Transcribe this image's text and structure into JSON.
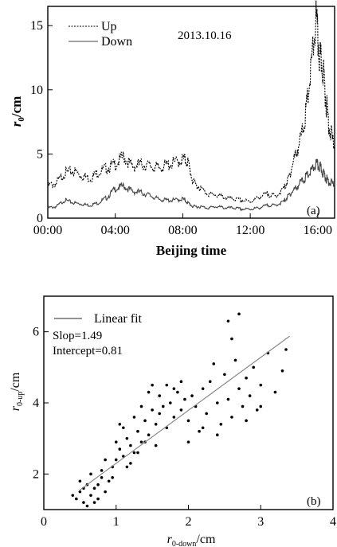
{
  "chart_data": [
    {
      "type": "line",
      "panel_label": "(a)",
      "annotation": "2013.10.16",
      "xlabel": "Beijing time",
      "ylabel_base": "r",
      "ylabel_sub": "0",
      "ylabel_unit": "/cm",
      "x_ticks": [
        "00:00",
        "04:00",
        "08:00",
        "12:00",
        "16:00"
      ],
      "x_tick_hours": [
        0,
        4,
        8,
        12,
        16
      ],
      "xlim_hours": [
        0,
        17
      ],
      "ylim": [
        0,
        16.5
      ],
      "y_ticks": [
        0,
        5,
        10,
        15
      ],
      "series": [
        {
          "name": "Up",
          "style": "dashed",
          "x": [
            0,
            0.5,
            1,
            1.5,
            2,
            2.5,
            3,
            3.5,
            4,
            4.5,
            5,
            5.5,
            6,
            6.5,
            7,
            7.5,
            8,
            8.3,
            8.6,
            9,
            9.5,
            10,
            10.5,
            11,
            11.5,
            12,
            12.5,
            13,
            13.5,
            14,
            14.3,
            14.6,
            15,
            15.3,
            15.6,
            15.9,
            16.1,
            16.3,
            16.5,
            16.7,
            17
          ],
          "y": [
            2.5,
            2.7,
            3.5,
            3.7,
            3.3,
            3.1,
            3.6,
            3.9,
            4.2,
            4.8,
            4.0,
            4.2,
            4.1,
            3.9,
            4.1,
            4.3,
            4.6,
            4.4,
            2.8,
            2.4,
            1.9,
            1.8,
            1.6,
            1.5,
            1.4,
            1.3,
            1.6,
            1.9,
            1.7,
            2.3,
            3.2,
            4.6,
            6.2,
            8.2,
            11.5,
            15.5,
            12.5,
            11.8,
            9.0,
            7.0,
            5.5
          ]
        },
        {
          "name": "Down",
          "style": "solid",
          "x": [
            0,
            0.5,
            1,
            1.5,
            2,
            2.5,
            3,
            3.5,
            4,
            4.5,
            5,
            5.5,
            6,
            6.5,
            7,
            7.5,
            8,
            8.3,
            8.6,
            9,
            9.5,
            10,
            10.5,
            11,
            11.5,
            12,
            12.5,
            13,
            13.5,
            14,
            14.3,
            14.6,
            15,
            15.3,
            15.6,
            15.9,
            16.1,
            16.3,
            16.5,
            16.7,
            17
          ],
          "y": [
            0.8,
            0.9,
            1.4,
            1.2,
            1.1,
            1.0,
            1.2,
            1.6,
            2.3,
            2.5,
            2.1,
            2.0,
            1.8,
            1.5,
            1.4,
            1.4,
            1.5,
            1.2,
            0.9,
            0.9,
            0.8,
            0.9,
            0.8,
            0.8,
            0.7,
            0.7,
            0.8,
            1.0,
            1.0,
            1.3,
            1.8,
            2.2,
            2.8,
            3.2,
            3.6,
            4.2,
            4.0,
            3.6,
            3.1,
            2.8,
            2.6
          ]
        }
      ],
      "colors": {
        "line": "#000000",
        "down_line": "#444444"
      }
    },
    {
      "type": "scatter",
      "panel_label": "(b)",
      "xlabel_base": "r",
      "xlabel_sub": "0-down",
      "xlabel_unit": "/cm",
      "ylabel_base": "r",
      "ylabel_sub": "0-up",
      "ylabel_unit": "/cm",
      "xlim": [
        0,
        4
      ],
      "ylim": [
        1,
        7
      ],
      "x_ticks": [
        0,
        1,
        2,
        3,
        4
      ],
      "y_ticks": [
        2,
        4,
        6
      ],
      "fit": {
        "label": "Linear fit",
        "slope_text": "Slop=1.49",
        "intercept_text": "Intercept=0.81",
        "slope": 1.49,
        "intercept": 0.81,
        "x_range": [
          0.5,
          3.4
        ]
      },
      "points": [
        [
          0.45,
          1.3
        ],
        [
          0.5,
          1.5
        ],
        [
          0.55,
          1.2
        ],
        [
          0.6,
          1.7
        ],
        [
          0.65,
          1.4
        ],
        [
          0.7,
          1.6
        ],
        [
          0.75,
          1.3
        ],
        [
          0.8,
          1.9
        ],
        [
          0.5,
          1.8
        ],
        [
          0.6,
          1.1
        ],
        [
          0.4,
          1.4
        ],
        [
          0.7,
          1.2
        ],
        [
          0.85,
          1.5
        ],
        [
          0.9,
          1.8
        ],
        [
          0.55,
          1.6
        ],
        [
          0.65,
          2.0
        ],
        [
          0.75,
          1.7
        ],
        [
          0.95,
          2.2
        ],
        [
          1.0,
          2.4
        ],
        [
          0.8,
          2.1
        ],
        [
          1.05,
          2.7
        ],
        [
          1.1,
          2.5
        ],
        [
          1.15,
          3.0
        ],
        [
          1.2,
          2.8
        ],
        [
          1.25,
          2.6
        ],
        [
          1.3,
          3.2
        ],
        [
          1.0,
          2.9
        ],
        [
          1.1,
          3.3
        ],
        [
          1.2,
          2.3
        ],
        [
          1.35,
          2.9
        ],
        [
          1.4,
          3.5
        ],
        [
          1.45,
          3.1
        ],
        [
          1.5,
          3.8
        ],
        [
          1.55,
          3.4
        ],
        [
          1.6,
          4.2
        ],
        [
          1.65,
          3.9
        ],
        [
          1.7,
          4.5
        ],
        [
          1.75,
          4.0
        ],
        [
          1.8,
          3.6
        ],
        [
          1.85,
          4.3
        ],
        [
          1.9,
          3.8
        ],
        [
          1.95,
          4.1
        ],
        [
          2.0,
          3.5
        ],
        [
          1.5,
          4.5
        ],
        [
          1.6,
          3.7
        ],
        [
          1.7,
          3.3
        ],
        [
          1.8,
          4.4
        ],
        [
          1.4,
          2.9
        ],
        [
          1.3,
          2.6
        ],
        [
          1.25,
          3.6
        ],
        [
          2.05,
          4.2
        ],
        [
          2.1,
          3.9
        ],
        [
          2.2,
          4.4
        ],
        [
          2.25,
          3.7
        ],
        [
          2.3,
          4.6
        ],
        [
          2.4,
          4.0
        ],
        [
          2.45,
          3.4
        ],
        [
          2.5,
          4.8
        ],
        [
          2.55,
          4.1
        ],
        [
          2.6,
          3.6
        ],
        [
          2.65,
          5.2
        ],
        [
          2.7,
          4.4
        ],
        [
          2.75,
          3.9
        ],
        [
          2.8,
          4.7
        ],
        [
          2.85,
          4.2
        ],
        [
          2.9,
          5.0
        ],
        [
          2.95,
          3.8
        ],
        [
          3.0,
          4.5
        ],
        [
          3.1,
          5.4
        ],
        [
          3.2,
          4.3
        ],
        [
          3.3,
          4.9
        ],
        [
          3.35,
          5.5
        ],
        [
          2.55,
          6.3
        ],
        [
          2.7,
          6.5
        ],
        [
          2.6,
          5.8
        ],
        [
          2.35,
          5.1
        ],
        [
          2.15,
          3.2
        ],
        [
          2.0,
          2.9
        ],
        [
          1.9,
          4.6
        ],
        [
          1.55,
          2.8
        ],
        [
          1.15,
          2.2
        ],
        [
          0.95,
          1.9
        ],
        [
          0.85,
          2.4
        ],
        [
          1.05,
          3.4
        ],
        [
          1.35,
          3.9
        ],
        [
          1.45,
          4.3
        ],
        [
          2.4,
          3.1
        ],
        [
          2.8,
          3.5
        ],
        [
          3.0,
          3.9
        ],
        [
          2.2,
          3.3
        ]
      ],
      "colors": {
        "point": "#000000",
        "fit": "#888888"
      }
    }
  ]
}
